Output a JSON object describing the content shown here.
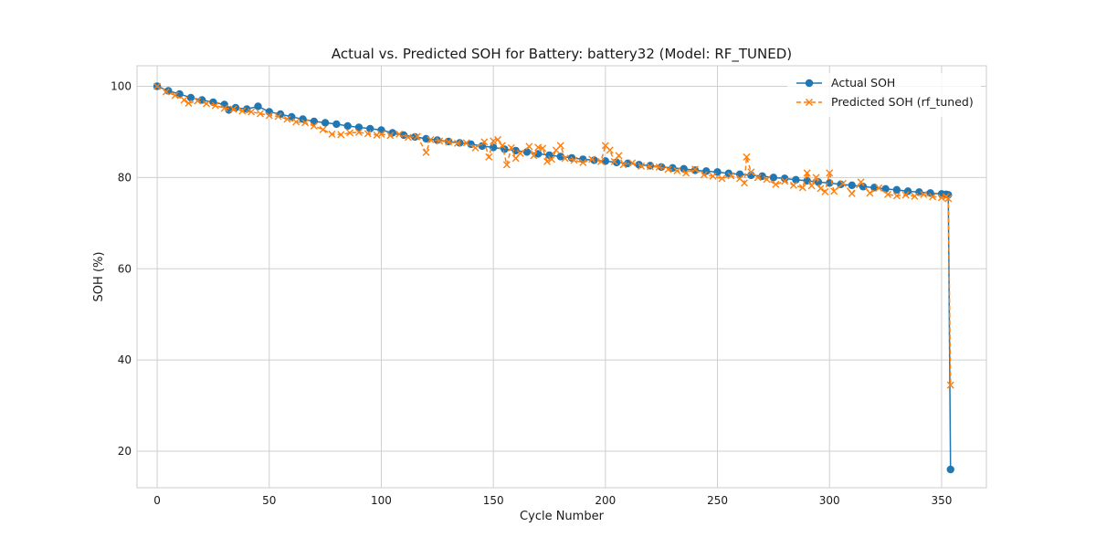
{
  "chart_data": {
    "type": "line",
    "title": "Actual vs. Predicted SOH for Battery: battery32 (Model: RF_TUNED)",
    "xlabel": "Cycle Number",
    "ylabel": "SOH (%)",
    "xlim": [
      -9,
      370
    ],
    "ylim": [
      12,
      104.5
    ],
    "xticks": [
      0,
      50,
      100,
      150,
      200,
      250,
      300,
      350
    ],
    "yticks": [
      20,
      40,
      60,
      80,
      100
    ],
    "grid": true,
    "legend_position": "top-right",
    "series": [
      {
        "name": "Actual SOH",
        "color": "#1f77b4",
        "marker": "circle",
        "line_style": "solid",
        "points": [
          [
            0,
            100.0
          ],
          [
            5,
            99.0
          ],
          [
            10,
            98.3
          ],
          [
            15,
            97.5
          ],
          [
            20,
            97.0
          ],
          [
            25,
            96.5
          ],
          [
            30,
            96.0
          ],
          [
            32,
            94.8
          ],
          [
            35,
            95.3
          ],
          [
            40,
            95.0
          ],
          [
            45,
            95.6
          ],
          [
            50,
            94.4
          ],
          [
            55,
            93.9
          ],
          [
            60,
            93.3
          ],
          [
            65,
            92.8
          ],
          [
            70,
            92.3
          ],
          [
            75,
            92.0
          ],
          [
            80,
            91.7
          ],
          [
            85,
            91.3
          ],
          [
            90,
            91.0
          ],
          [
            95,
            90.7
          ],
          [
            100,
            90.4
          ],
          [
            105,
            89.8
          ],
          [
            110,
            89.3
          ],
          [
            115,
            88.9
          ],
          [
            120,
            88.5
          ],
          [
            125,
            88.2
          ],
          [
            130,
            87.9
          ],
          [
            135,
            87.6
          ],
          [
            140,
            87.3
          ],
          [
            145,
            86.9
          ],
          [
            150,
            86.6
          ],
          [
            155,
            86.2
          ],
          [
            160,
            85.9
          ],
          [
            165,
            85.6
          ],
          [
            170,
            85.2
          ],
          [
            175,
            84.9
          ],
          [
            180,
            84.6
          ],
          [
            185,
            84.3
          ],
          [
            190,
            84.0
          ],
          [
            195,
            83.8
          ],
          [
            200,
            83.6
          ],
          [
            205,
            83.3
          ],
          [
            210,
            83.1
          ],
          [
            215,
            82.8
          ],
          [
            220,
            82.6
          ],
          [
            225,
            82.3
          ],
          [
            230,
            82.1
          ],
          [
            235,
            81.9
          ],
          [
            240,
            81.6
          ],
          [
            245,
            81.4
          ],
          [
            250,
            81.2
          ],
          [
            255,
            80.9
          ],
          [
            260,
            80.7
          ],
          [
            265,
            80.5
          ],
          [
            270,
            80.3
          ],
          [
            275,
            80.0
          ],
          [
            280,
            79.8
          ],
          [
            285,
            79.5
          ],
          [
            290,
            79.3
          ],
          [
            295,
            79.0
          ],
          [
            300,
            78.8
          ],
          [
            305,
            78.5
          ],
          [
            310,
            78.3
          ],
          [
            315,
            78.0
          ],
          [
            320,
            77.8
          ],
          [
            325,
            77.5
          ],
          [
            330,
            77.3
          ],
          [
            335,
            77.0
          ],
          [
            340,
            76.8
          ],
          [
            345,
            76.6
          ],
          [
            350,
            76.4
          ],
          [
            352,
            76.3
          ],
          [
            353,
            76.2
          ],
          [
            354,
            16.0
          ]
        ]
      },
      {
        "name": "Predicted SOH (rf_tuned)",
        "color": "#ff7f0e",
        "marker": "x",
        "line_style": "dashed",
        "points": [
          [
            0,
            100.0
          ],
          [
            4,
            98.8
          ],
          [
            8,
            98.0
          ],
          [
            12,
            97.0
          ],
          [
            14,
            96.3
          ],
          [
            18,
            96.8
          ],
          [
            22,
            96.2
          ],
          [
            26,
            95.8
          ],
          [
            30,
            95.2
          ],
          [
            34,
            95.0
          ],
          [
            38,
            94.6
          ],
          [
            42,
            94.4
          ],
          [
            46,
            94.0
          ],
          [
            50,
            93.6
          ],
          [
            54,
            93.4
          ],
          [
            58,
            92.8
          ],
          [
            62,
            92.2
          ],
          [
            66,
            92.0
          ],
          [
            70,
            91.3
          ],
          [
            74,
            90.5
          ],
          [
            78,
            89.5
          ],
          [
            82,
            89.4
          ],
          [
            86,
            89.8
          ],
          [
            90,
            89.9
          ],
          [
            94,
            89.6
          ],
          [
            98,
            89.3
          ],
          [
            100,
            89.5
          ],
          [
            104,
            89.2
          ],
          [
            108,
            89.5
          ],
          [
            112,
            88.8
          ],
          [
            116,
            89.0
          ],
          [
            120,
            85.5
          ],
          [
            122,
            88.3
          ],
          [
            126,
            88.0
          ],
          [
            130,
            87.8
          ],
          [
            134,
            87.5
          ],
          [
            138,
            87.6
          ],
          [
            142,
            86.5
          ],
          [
            146,
            87.8
          ],
          [
            148,
            84.5
          ],
          [
            150,
            88.0
          ],
          [
            152,
            88.3
          ],
          [
            154,
            87.0
          ],
          [
            156,
            82.8
          ],
          [
            158,
            86.5
          ],
          [
            160,
            84.2
          ],
          [
            162,
            85.3
          ],
          [
            166,
            86.8
          ],
          [
            168,
            84.8
          ],
          [
            170,
            86.6
          ],
          [
            172,
            86.4
          ],
          [
            174,
            83.5
          ],
          [
            176,
            84.0
          ],
          [
            178,
            86.0
          ],
          [
            180,
            87.0
          ],
          [
            182,
            84.2
          ],
          [
            186,
            83.8
          ],
          [
            190,
            83.3
          ],
          [
            194,
            84.0
          ],
          [
            198,
            83.5
          ],
          [
            200,
            87.0
          ],
          [
            202,
            86.0
          ],
          [
            204,
            83.5
          ],
          [
            206,
            84.8
          ],
          [
            208,
            82.8
          ],
          [
            212,
            83.2
          ],
          [
            216,
            82.5
          ],
          [
            220,
            82.4
          ],
          [
            224,
            82.3
          ],
          [
            228,
            81.8
          ],
          [
            232,
            81.5
          ],
          [
            236,
            81.0
          ],
          [
            240,
            81.8
          ],
          [
            244,
            80.6
          ],
          [
            248,
            80.3
          ],
          [
            252,
            79.8
          ],
          [
            256,
            80.4
          ],
          [
            260,
            79.8
          ],
          [
            262,
            78.8
          ],
          [
            263,
            84.5
          ],
          [
            265,
            81.2
          ],
          [
            268,
            80.0
          ],
          [
            272,
            79.6
          ],
          [
            276,
            78.5
          ],
          [
            280,
            79.2
          ],
          [
            284,
            78.3
          ],
          [
            288,
            77.8
          ],
          [
            290,
            81.0
          ],
          [
            292,
            78.2
          ],
          [
            294,
            80.0
          ],
          [
            296,
            77.6
          ],
          [
            298,
            76.9
          ],
          [
            300,
            81.0
          ],
          [
            302,
            77.0
          ],
          [
            306,
            78.7
          ],
          [
            310,
            76.5
          ],
          [
            314,
            79.0
          ],
          [
            318,
            76.6
          ],
          [
            322,
            77.7
          ],
          [
            326,
            76.3
          ],
          [
            330,
            76.0
          ],
          [
            334,
            76.2
          ],
          [
            338,
            75.9
          ],
          [
            342,
            76.3
          ],
          [
            346,
            75.8
          ],
          [
            350,
            75.6
          ],
          [
            352,
            75.8
          ],
          [
            353,
            75.4
          ],
          [
            354,
            34.5
          ]
        ]
      }
    ]
  }
}
